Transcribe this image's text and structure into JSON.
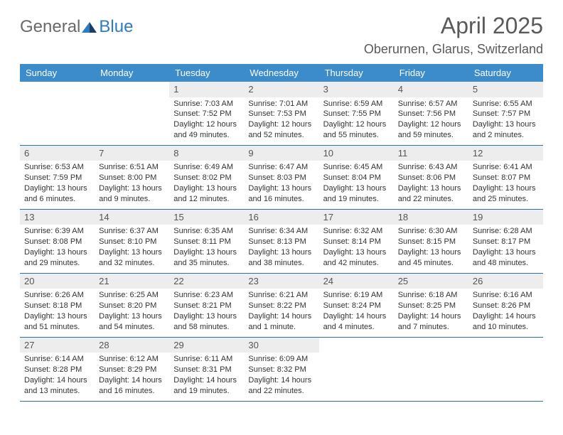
{
  "brand": {
    "general": "General",
    "blue": "Blue"
  },
  "title": "April 2025",
  "location": "Oberurnen, Glarus, Switzerland",
  "colors": {
    "header_bg": "#3c8ccc",
    "header_text": "#ffffff",
    "daynum_bg": "#ededed",
    "rule": "#2f6f9f",
    "brand_blue": "#2f7bbf",
    "brand_gray": "#6a6a6a"
  },
  "fonts": {
    "title_size": 32,
    "location_size": 18,
    "dow_size": 13,
    "daynum_size": 13,
    "body_size": 11
  },
  "dow": [
    "Sunday",
    "Monday",
    "Tuesday",
    "Wednesday",
    "Thursday",
    "Friday",
    "Saturday"
  ],
  "weeks": [
    [
      null,
      null,
      {
        "n": "1",
        "sunrise": "Sunrise: 7:03 AM",
        "sunset": "Sunset: 7:52 PM",
        "daylight": "Daylight: 12 hours and 49 minutes."
      },
      {
        "n": "2",
        "sunrise": "Sunrise: 7:01 AM",
        "sunset": "Sunset: 7:53 PM",
        "daylight": "Daylight: 12 hours and 52 minutes."
      },
      {
        "n": "3",
        "sunrise": "Sunrise: 6:59 AM",
        "sunset": "Sunset: 7:55 PM",
        "daylight": "Daylight: 12 hours and 55 minutes."
      },
      {
        "n": "4",
        "sunrise": "Sunrise: 6:57 AM",
        "sunset": "Sunset: 7:56 PM",
        "daylight": "Daylight: 12 hours and 59 minutes."
      },
      {
        "n": "5",
        "sunrise": "Sunrise: 6:55 AM",
        "sunset": "Sunset: 7:57 PM",
        "daylight": "Daylight: 13 hours and 2 minutes."
      }
    ],
    [
      {
        "n": "6",
        "sunrise": "Sunrise: 6:53 AM",
        "sunset": "Sunset: 7:59 PM",
        "daylight": "Daylight: 13 hours and 6 minutes."
      },
      {
        "n": "7",
        "sunrise": "Sunrise: 6:51 AM",
        "sunset": "Sunset: 8:00 PM",
        "daylight": "Daylight: 13 hours and 9 minutes."
      },
      {
        "n": "8",
        "sunrise": "Sunrise: 6:49 AM",
        "sunset": "Sunset: 8:02 PM",
        "daylight": "Daylight: 13 hours and 12 minutes."
      },
      {
        "n": "9",
        "sunrise": "Sunrise: 6:47 AM",
        "sunset": "Sunset: 8:03 PM",
        "daylight": "Daylight: 13 hours and 16 minutes."
      },
      {
        "n": "10",
        "sunrise": "Sunrise: 6:45 AM",
        "sunset": "Sunset: 8:04 PM",
        "daylight": "Daylight: 13 hours and 19 minutes."
      },
      {
        "n": "11",
        "sunrise": "Sunrise: 6:43 AM",
        "sunset": "Sunset: 8:06 PM",
        "daylight": "Daylight: 13 hours and 22 minutes."
      },
      {
        "n": "12",
        "sunrise": "Sunrise: 6:41 AM",
        "sunset": "Sunset: 8:07 PM",
        "daylight": "Daylight: 13 hours and 25 minutes."
      }
    ],
    [
      {
        "n": "13",
        "sunrise": "Sunrise: 6:39 AM",
        "sunset": "Sunset: 8:08 PM",
        "daylight": "Daylight: 13 hours and 29 minutes."
      },
      {
        "n": "14",
        "sunrise": "Sunrise: 6:37 AM",
        "sunset": "Sunset: 8:10 PM",
        "daylight": "Daylight: 13 hours and 32 minutes."
      },
      {
        "n": "15",
        "sunrise": "Sunrise: 6:35 AM",
        "sunset": "Sunset: 8:11 PM",
        "daylight": "Daylight: 13 hours and 35 minutes."
      },
      {
        "n": "16",
        "sunrise": "Sunrise: 6:34 AM",
        "sunset": "Sunset: 8:13 PM",
        "daylight": "Daylight: 13 hours and 38 minutes."
      },
      {
        "n": "17",
        "sunrise": "Sunrise: 6:32 AM",
        "sunset": "Sunset: 8:14 PM",
        "daylight": "Daylight: 13 hours and 42 minutes."
      },
      {
        "n": "18",
        "sunrise": "Sunrise: 6:30 AM",
        "sunset": "Sunset: 8:15 PM",
        "daylight": "Daylight: 13 hours and 45 minutes."
      },
      {
        "n": "19",
        "sunrise": "Sunrise: 6:28 AM",
        "sunset": "Sunset: 8:17 PM",
        "daylight": "Daylight: 13 hours and 48 minutes."
      }
    ],
    [
      {
        "n": "20",
        "sunrise": "Sunrise: 6:26 AM",
        "sunset": "Sunset: 8:18 PM",
        "daylight": "Daylight: 13 hours and 51 minutes."
      },
      {
        "n": "21",
        "sunrise": "Sunrise: 6:25 AM",
        "sunset": "Sunset: 8:20 PM",
        "daylight": "Daylight: 13 hours and 54 minutes."
      },
      {
        "n": "22",
        "sunrise": "Sunrise: 6:23 AM",
        "sunset": "Sunset: 8:21 PM",
        "daylight": "Daylight: 13 hours and 58 minutes."
      },
      {
        "n": "23",
        "sunrise": "Sunrise: 6:21 AM",
        "sunset": "Sunset: 8:22 PM",
        "daylight": "Daylight: 14 hours and 1 minute."
      },
      {
        "n": "24",
        "sunrise": "Sunrise: 6:19 AM",
        "sunset": "Sunset: 8:24 PM",
        "daylight": "Daylight: 14 hours and 4 minutes."
      },
      {
        "n": "25",
        "sunrise": "Sunrise: 6:18 AM",
        "sunset": "Sunset: 8:25 PM",
        "daylight": "Daylight: 14 hours and 7 minutes."
      },
      {
        "n": "26",
        "sunrise": "Sunrise: 6:16 AM",
        "sunset": "Sunset: 8:26 PM",
        "daylight": "Daylight: 14 hours and 10 minutes."
      }
    ],
    [
      {
        "n": "27",
        "sunrise": "Sunrise: 6:14 AM",
        "sunset": "Sunset: 8:28 PM",
        "daylight": "Daylight: 14 hours and 13 minutes."
      },
      {
        "n": "28",
        "sunrise": "Sunrise: 6:12 AM",
        "sunset": "Sunset: 8:29 PM",
        "daylight": "Daylight: 14 hours and 16 minutes."
      },
      {
        "n": "29",
        "sunrise": "Sunrise: 6:11 AM",
        "sunset": "Sunset: 8:31 PM",
        "daylight": "Daylight: 14 hours and 19 minutes."
      },
      {
        "n": "30",
        "sunrise": "Sunrise: 6:09 AM",
        "sunset": "Sunset: 8:32 PM",
        "daylight": "Daylight: 14 hours and 22 minutes."
      },
      null,
      null,
      null
    ]
  ]
}
